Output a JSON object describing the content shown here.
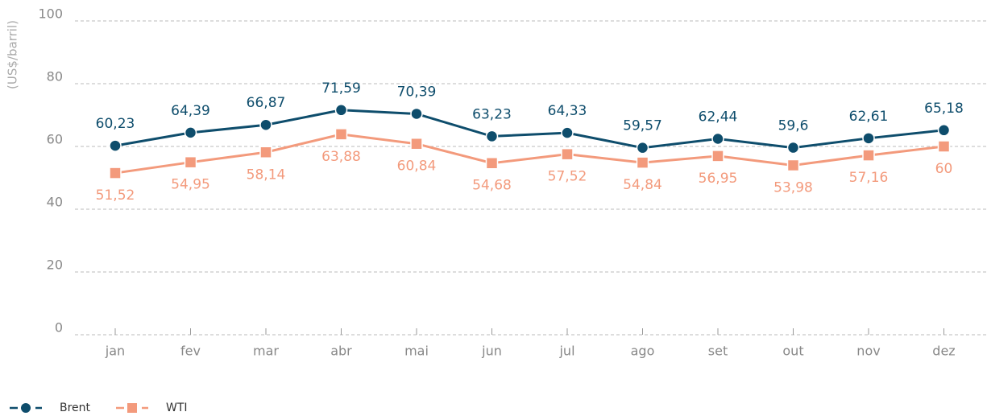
{
  "chart_data": {
    "type": "line",
    "y_label": "(US$/barril)",
    "categories": [
      "jan",
      "fev",
      "mar",
      "abr",
      "mai",
      "jun",
      "jul",
      "ago",
      "set",
      "out",
      "nov",
      "dez"
    ],
    "series": [
      {
        "name": "Brent",
        "color": "#0e4d6c",
        "marker": "circle",
        "values": [
          60.23,
          64.39,
          66.87,
          71.59,
          70.39,
          63.23,
          64.33,
          59.57,
          62.44,
          59.6,
          62.61,
          65.18
        ],
        "value_labels": [
          "60,23",
          "64,39",
          "66,87",
          "71,59",
          "70,39",
          "63,23",
          "64,33",
          "59,57",
          "62,44",
          "59,6",
          "62,61",
          "65,18"
        ]
      },
      {
        "name": "WTI",
        "color": "#f39a7c",
        "marker": "square",
        "values": [
          51.52,
          54.95,
          58.14,
          63.88,
          60.84,
          54.68,
          57.52,
          54.84,
          56.95,
          53.98,
          57.16,
          60
        ],
        "value_labels": [
          "51,52",
          "54,95",
          "58,14",
          "63,88",
          "60,84",
          "54,68",
          "57,52",
          "54,84",
          "56,95",
          "53,98",
          "57,16",
          "60"
        ]
      }
    ],
    "ylim": [
      0,
      100
    ],
    "yticks": [
      0,
      20,
      40,
      60,
      80,
      100
    ],
    "grid": true,
    "legend": "bottom-left"
  }
}
